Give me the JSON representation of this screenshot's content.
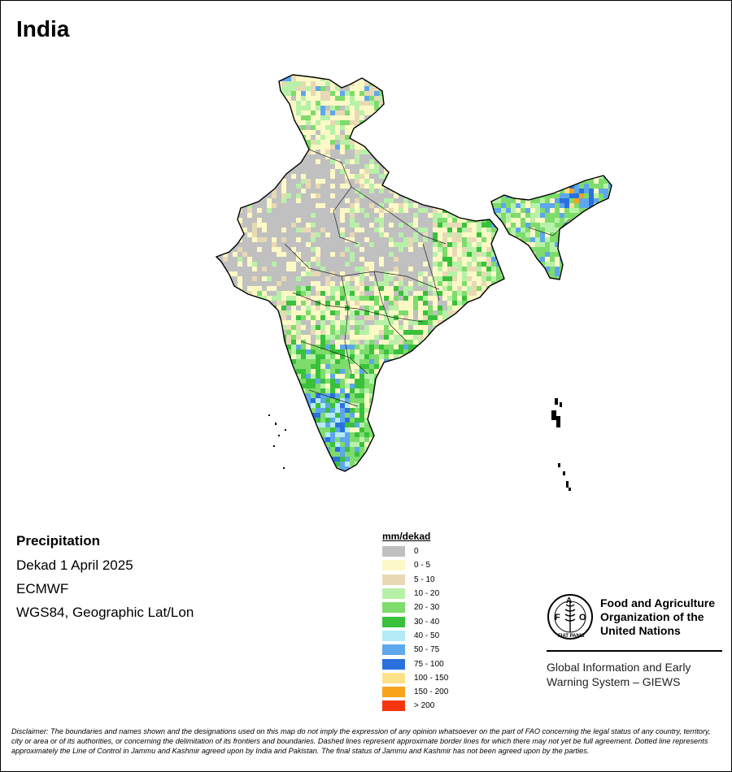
{
  "title": "India",
  "info": {
    "variable": "Precipitation",
    "period": "Dekad 1 April 2025",
    "source": "ECMWF",
    "projection": "WGS84, Geographic Lat/Lon"
  },
  "legend": {
    "title": "mm/dekad",
    "classes": [
      {
        "label": "0",
        "color": "#c0c0c0"
      },
      {
        "label": "0 - 5",
        "color": "#fdf9c6"
      },
      {
        "label": "5 - 10",
        "color": "#e8d9b5"
      },
      {
        "label": "10 - 20",
        "color": "#b7f1a7"
      },
      {
        "label": "20 - 30",
        "color": "#7ddc6c"
      },
      {
        "label": "30 - 40",
        "color": "#39c13b"
      },
      {
        "label": "40 - 50",
        "color": "#b3ebf7"
      },
      {
        "label": "50 - 75",
        "color": "#5ea7ec"
      },
      {
        "label": "75 - 100",
        "color": "#2a71dd"
      },
      {
        "label": "100 - 150",
        "color": "#fde18a"
      },
      {
        "label": "150 - 200",
        "color": "#f9a21b"
      },
      {
        "label": "> 200",
        "color": "#f6350e"
      }
    ]
  },
  "org": {
    "name_line1": "Food and Agriculture",
    "name_line2": "Organization of the",
    "name_line3": "United Nations",
    "logo_text": "FAO",
    "logo_motto": "FIAT PANIS",
    "system_line1": "Global Information and Early",
    "system_line2": "Warning System – GIEWS"
  },
  "disclaimer": "Disclaimer: The boundaries and names shown and the designations used on this map do not imply the expression of any opinion whatsoever on the part of FAO concerning the legal status of any country, territory, city or area or of its authorities, or concerning the delimitation of its frontiers and boundaries. Dashed lines represent approximate border lines for which there may not yet be full agreement. Dotted line represents approximately the Line of Control in Jammu and Kashmir agreed upon by India and Pakistan. The final status of Jammu and Kashmir has not been agreed upon by the parties."
}
